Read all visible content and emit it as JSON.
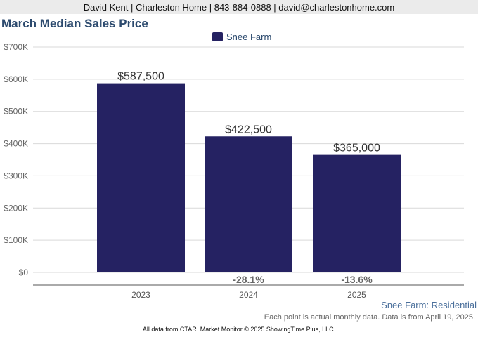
{
  "header": {
    "contact": "David Kent | Charleston Home | 843-884-0888 | david@charlestonhome.com"
  },
  "chart_data": {
    "type": "bar",
    "title": "March Median Sales Price",
    "categories": [
      "2023",
      "2024",
      "2025"
    ],
    "series": [
      {
        "name": "Snee Farm",
        "values": [
          587500,
          422500,
          365000
        ],
        "color": "#252262"
      }
    ],
    "data_labels": [
      "$587,500",
      "$422,500",
      "$365,000"
    ],
    "change_labels": [
      "",
      "-28.1%",
      "-13.6%"
    ],
    "ylim": [
      0,
      700000
    ],
    "yticks": [
      0,
      100000,
      200000,
      300000,
      400000,
      500000,
      600000,
      700000
    ],
    "ytick_labels": [
      "$0",
      "$100K",
      "$200K",
      "$300K",
      "$400K",
      "$500K",
      "$600K",
      "$700K"
    ],
    "grid": true,
    "legend": "top-center"
  },
  "footer": {
    "source_label": "Snee Farm: Residential",
    "note": "Each point is actual monthly data. Data is from April 19, 2025.",
    "copyright": "All data from CTAR. Market Monitor © 2025 ShowingTime Plus, LLC."
  }
}
